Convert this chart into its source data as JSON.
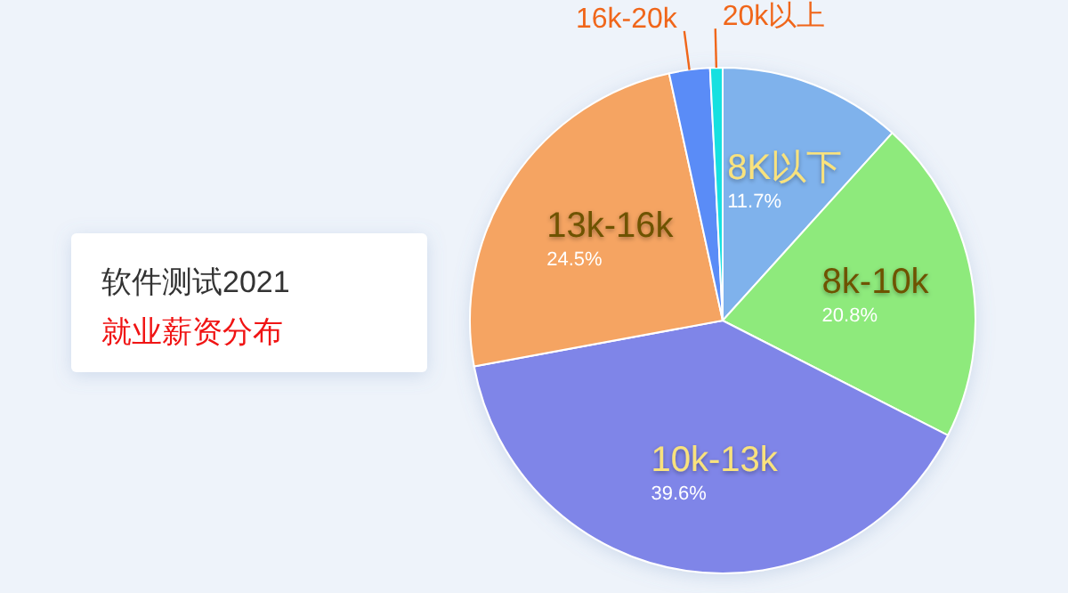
{
  "chart_data": {
    "type": "pie",
    "title": "软件测试2021",
    "subtitle": "就业薪资分布",
    "categories": [
      "8K以下",
      "8k-10k",
      "10k-13k",
      "13k-16k",
      "16k-20k",
      "20k以上"
    ],
    "values": [
      11.7,
      20.8,
      39.6,
      24.5,
      2.6,
      0.8
    ],
    "colors": [
      "#7fb2ec",
      "#8eea7c",
      "#7f85e8",
      "#f5a462",
      "#5a8cf7",
      "#19e0e0"
    ],
    "value_labels": [
      "11.7%",
      "20.8%",
      "39.6%",
      "24.5%",
      null,
      null
    ]
  }
}
